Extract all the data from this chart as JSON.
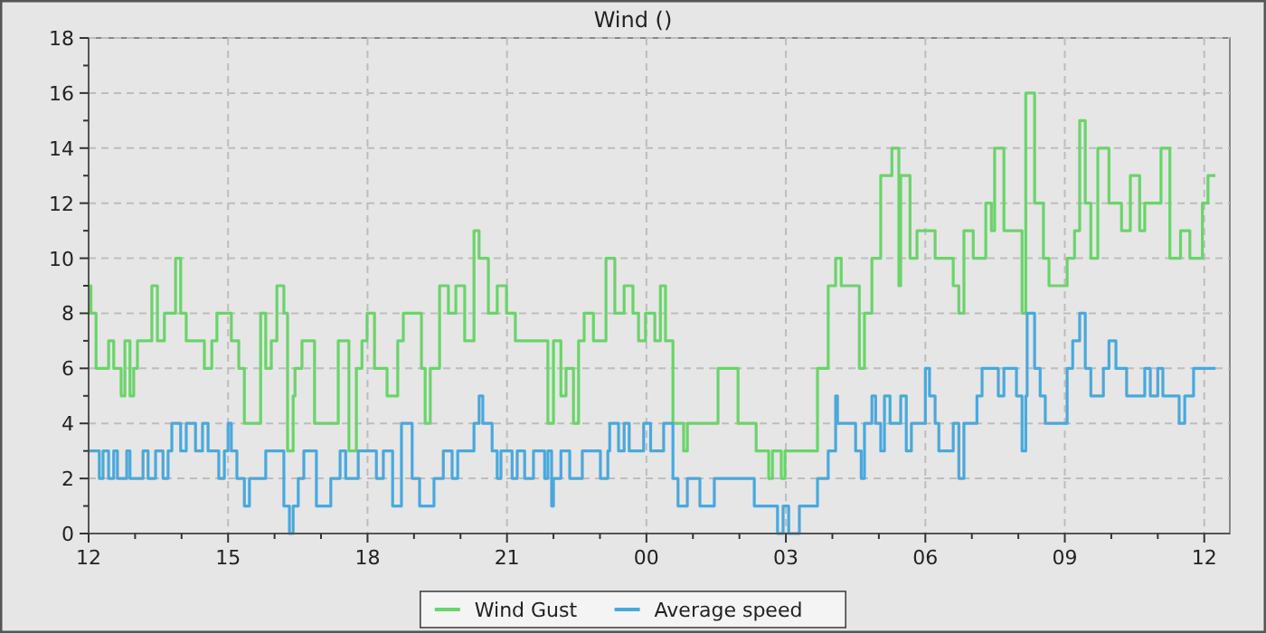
{
  "chart_data": {
    "type": "step",
    "title": "Wind ()",
    "xlim": [
      12,
      36.55
    ],
    "ylim": [
      0,
      18
    ],
    "xticks": [
      {
        "value": 12,
        "label": "12"
      },
      {
        "value": 13,
        "label": null
      },
      {
        "value": 14,
        "label": null
      },
      {
        "value": 15,
        "label": "15"
      },
      {
        "value": 16,
        "label": null
      },
      {
        "value": 17,
        "label": null
      },
      {
        "value": 18,
        "label": "18"
      },
      {
        "value": 19,
        "label": null
      },
      {
        "value": 20,
        "label": null
      },
      {
        "value": 21,
        "label": "21"
      },
      {
        "value": 22,
        "label": null
      },
      {
        "value": 23,
        "label": null
      },
      {
        "value": 24,
        "label": "00"
      },
      {
        "value": 25,
        "label": null
      },
      {
        "value": 26,
        "label": null
      },
      {
        "value": 27,
        "label": "03"
      },
      {
        "value": 28,
        "label": null
      },
      {
        "value": 29,
        "label": null
      },
      {
        "value": 30,
        "label": "06"
      },
      {
        "value": 31,
        "label": null
      },
      {
        "value": 32,
        "label": null
      },
      {
        "value": 33,
        "label": "09"
      },
      {
        "value": 34,
        "label": null
      },
      {
        "value": 35,
        "label": null
      },
      {
        "value": 36,
        "label": "12"
      }
    ],
    "yticks": [
      0,
      {
        "value": 1,
        "label": null
      },
      2,
      {
        "value": 3,
        "label": null
      },
      4,
      {
        "value": 5,
        "label": null
      },
      6,
      {
        "value": 7,
        "label": null
      },
      8,
      {
        "value": 9,
        "label": null
      },
      10,
      {
        "value": 11,
        "label": null
      },
      12,
      {
        "value": 13,
        "label": null
      },
      14,
      {
        "value": 15,
        "label": null
      },
      16,
      {
        "value": 17,
        "label": null
      },
      18
    ],
    "grid": true,
    "legend": "bottom",
    "series": [
      {
        "name": "Wind Gust",
        "color": "#6ad46a",
        "x": [
          12.0,
          12.05,
          12.16,
          12.43,
          12.54,
          12.7,
          12.78,
          12.89,
          12.97,
          13.05,
          13.36,
          13.48,
          13.63,
          13.87,
          13.98,
          14.1,
          14.49,
          14.65,
          14.76,
          15.07,
          15.23,
          15.35,
          15.7,
          15.81,
          15.93,
          16.05,
          16.2,
          16.28,
          16.4,
          16.44,
          16.59,
          16.86,
          17.37,
          17.6,
          17.76,
          17.88,
          17.99,
          18.15,
          18.42,
          18.65,
          18.77,
          19.16,
          19.24,
          19.35,
          19.55,
          19.74,
          19.9,
          20.09,
          20.29,
          20.4,
          20.6,
          20.79,
          20.99,
          21.18,
          21.88,
          22.0,
          22.16,
          22.27,
          22.43,
          22.54,
          22.66,
          22.86,
          23.13,
          23.32,
          23.52,
          23.71,
          23.83,
          23.98,
          24.18,
          24.3,
          24.41,
          24.57,
          24.8,
          24.88,
          25.54,
          25.97,
          26.36,
          26.63,
          26.71,
          26.9,
          26.98,
          27.68,
          27.91,
          28.07,
          28.19,
          28.58,
          28.69,
          28.85,
          29.04,
          29.28,
          29.43,
          29.47,
          29.67,
          29.82,
          30.21,
          30.6,
          30.72,
          30.83,
          31.03,
          31.3,
          31.42,
          31.49,
          31.69,
          32.08,
          32.16,
          32.35,
          32.54,
          32.66,
          33.05,
          33.21,
          33.32,
          33.44,
          33.56,
          33.71,
          33.95,
          34.22,
          34.41,
          34.61,
          34.72,
          35.07,
          35.26,
          35.49,
          35.69,
          35.96,
          36.08,
          36.24
        ],
        "values": [
          9,
          8,
          6,
          7,
          6,
          5,
          7,
          5,
          6,
          7,
          9,
          7,
          8,
          10,
          8,
          7,
          6,
          7,
          8,
          7,
          6,
          4,
          8,
          6,
          7,
          9,
          8,
          3,
          5,
          6,
          7,
          4,
          7,
          3,
          6,
          7,
          8,
          6,
          5,
          7,
          8,
          6,
          4,
          6,
          9,
          8,
          9,
          7,
          11,
          10,
          8,
          9,
          8,
          7,
          4,
          7,
          5,
          6,
          4,
          7,
          8,
          7,
          10,
          8,
          9,
          8,
          7,
          8,
          7,
          9,
          7,
          4,
          3,
          4,
          6,
          4,
          3,
          2,
          3,
          2,
          3,
          6,
          9,
          10,
          9,
          6,
          8,
          10,
          13,
          14,
          9,
          13,
          10,
          11,
          10,
          9,
          8,
          11,
          10,
          12,
          11,
          14,
          11,
          8,
          16,
          12,
          10,
          9,
          10,
          11,
          15,
          12,
          10,
          14,
          12,
          11,
          13,
          11,
          12,
          14,
          10,
          11,
          10,
          12,
          13,
          13
        ]
      },
      {
        "name": "Average speed",
        "color": "#4aa8dc",
        "x": [
          12.0,
          12.23,
          12.31,
          12.43,
          12.54,
          12.62,
          12.82,
          12.89,
          13.17,
          13.28,
          13.44,
          13.6,
          13.71,
          13.79,
          13.98,
          14.1,
          14.3,
          14.45,
          14.57,
          14.8,
          14.92,
          15.0,
          15.07,
          15.19,
          15.35,
          15.46,
          15.81,
          16.2,
          16.32,
          16.4,
          16.51,
          16.63,
          16.9,
          17.21,
          17.41,
          17.53,
          17.8,
          18.19,
          18.34,
          18.54,
          18.73,
          18.96,
          19.12,
          19.43,
          19.63,
          19.82,
          19.94,
          20.29,
          20.4,
          20.48,
          20.68,
          20.79,
          20.87,
          21.11,
          21.22,
          21.38,
          21.57,
          21.81,
          21.88,
          21.96,
          22.0,
          22.16,
          22.35,
          22.62,
          23.01,
          23.17,
          23.21,
          23.4,
          23.52,
          23.63,
          23.94,
          24.09,
          24.37,
          24.57,
          24.68,
          24.88,
          25.15,
          25.46,
          26.32,
          26.82,
          26.94,
          27.06,
          27.29,
          27.68,
          27.91,
          28.07,
          28.11,
          28.5,
          28.62,
          28.69,
          28.85,
          28.93,
          29.04,
          29.12,
          29.24,
          29.47,
          29.59,
          29.7,
          30.0,
          30.09,
          30.21,
          30.29,
          30.6,
          30.72,
          30.83,
          31.11,
          31.22,
          31.57,
          31.69,
          31.96,
          32.08,
          32.16,
          32.19,
          32.35,
          32.47,
          32.58,
          33.05,
          33.17,
          33.32,
          33.44,
          33.56,
          33.83,
          33.95,
          34.1,
          34.33,
          34.72,
          34.84,
          35.0,
          35.11,
          35.46,
          35.58,
          35.77,
          36.24
        ],
        "values": [
          3,
          2,
          3,
          2,
          3,
          2,
          3,
          2,
          3,
          2,
          3,
          2,
          3,
          4,
          3,
          4,
          3,
          4,
          3,
          2,
          3,
          4,
          3,
          2,
          1,
          2,
          3,
          1,
          0,
          1,
          2,
          3,
          1,
          2,
          3,
          2,
          3,
          2,
          3,
          1,
          4,
          2,
          1,
          2,
          3,
          2,
          3,
          4,
          5,
          4,
          3,
          2,
          3,
          2,
          3,
          2,
          3,
          2,
          3,
          1,
          2,
          3,
          2,
          3,
          2,
          3,
          4,
          3,
          4,
          3,
          4,
          3,
          4,
          2,
          1,
          2,
          1,
          2,
          1,
          0,
          1,
          0,
          1,
          2,
          3,
          5,
          4,
          3,
          2,
          4,
          5,
          4,
          3,
          5,
          4,
          5,
          3,
          4,
          6,
          5,
          4,
          3,
          4,
          2,
          4,
          5,
          6,
          5,
          6,
          5,
          3,
          5,
          8,
          6,
          5,
          4,
          6,
          7,
          8,
          6,
          5,
          6,
          7,
          6,
          5,
          6,
          5,
          6,
          5,
          4,
          5,
          6,
          6
        ]
      }
    ]
  }
}
